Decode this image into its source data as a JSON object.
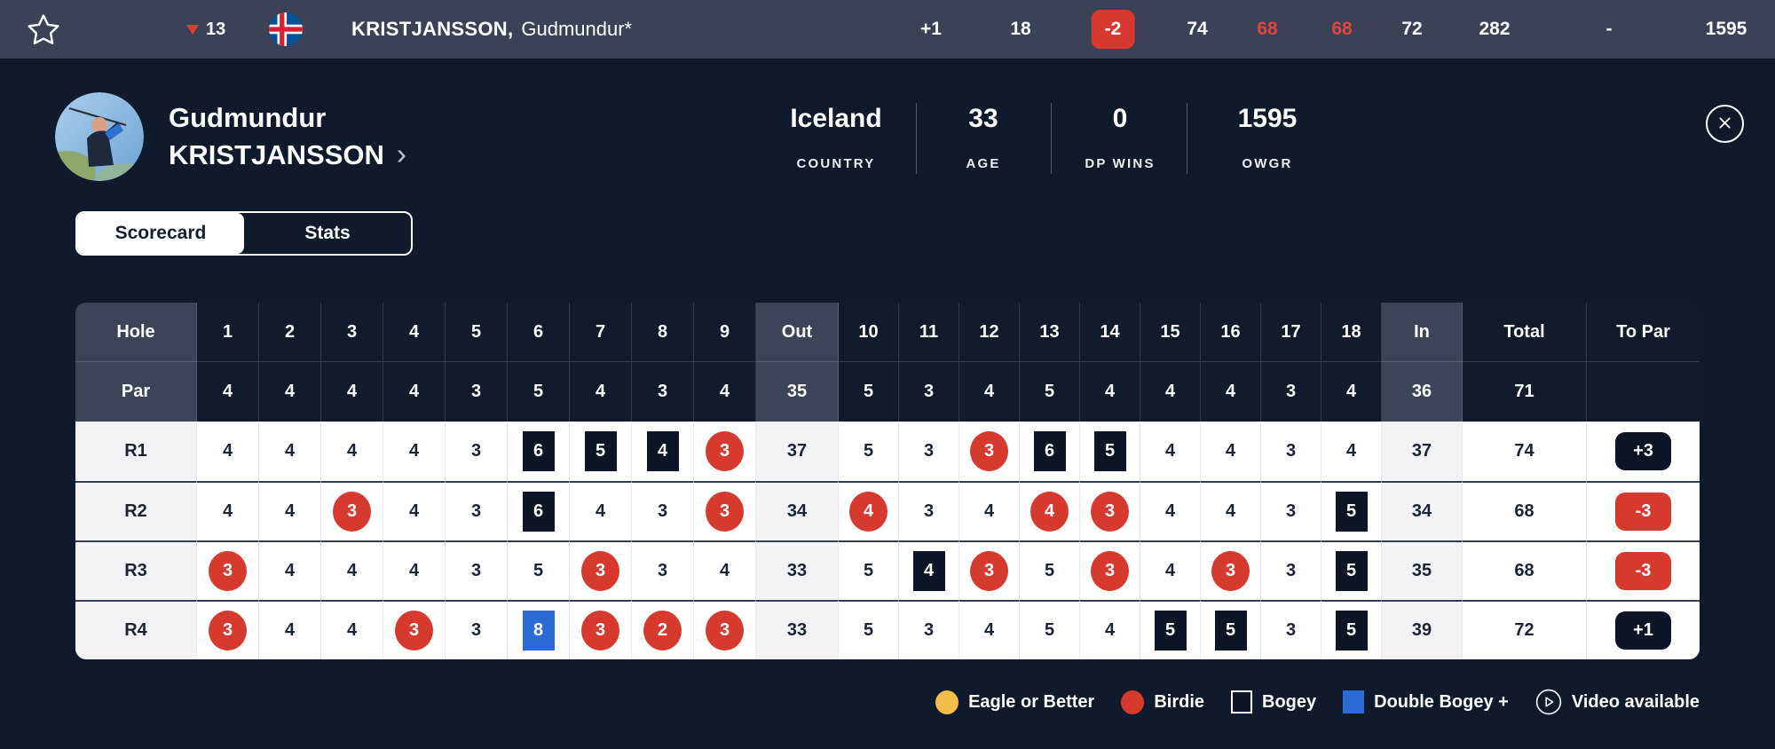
{
  "colors": {
    "top_bar_bg": "#3B4156",
    "page_bg": "#0F1A2C",
    "header_cell_bg": "#121B2E",
    "header_label_bg": "#3D4459",
    "row_label_bg": "#F3F3F5",
    "birdie_red": "#D6392E",
    "bogey_navy": "#0D1526",
    "double_bogey_blue": "#2A6BD6",
    "eagle_yellow": "#F2BD4A"
  },
  "icons": {
    "favorite": "star-icon",
    "position_down": "triangle-down-icon",
    "flag": "iceland-flag-icon",
    "profile_chevron": "›",
    "close": "close-x-icon",
    "video": "video-play-icon"
  },
  "top_bar": {
    "position_move": {
      "direction": "down",
      "value": "13"
    },
    "name_last": "KRISTJANSSON,",
    "name_first": "Gudmundur*",
    "cells": [
      {
        "text": "+1",
        "style": "plain"
      },
      {
        "text": "18",
        "style": "plain"
      },
      {
        "text": "-2",
        "style": "badge-red"
      },
      {
        "text": "74",
        "style": "plain"
      },
      {
        "text": "68",
        "style": "text-red"
      },
      {
        "text": "68",
        "style": "text-red"
      },
      {
        "text": "72",
        "style": "plain"
      },
      {
        "text": "282",
        "style": "plain"
      },
      {
        "text": "-",
        "style": "plain"
      },
      {
        "text": "1595",
        "style": "plain"
      }
    ]
  },
  "profile": {
    "first_name": "Gudmundur",
    "last_name": "KRISTJANSSON",
    "stats": [
      {
        "value": "Iceland",
        "label": "COUNTRY"
      },
      {
        "value": "33",
        "label": "AGE"
      },
      {
        "value": "0",
        "label": "DP WINS"
      },
      {
        "value": "1595",
        "label": "OWGR"
      }
    ]
  },
  "tabs": {
    "scorecard": "Scorecard",
    "stats": "Stats",
    "active": "Scorecard"
  },
  "scorecard": {
    "columns": {
      "hole": "Hole",
      "par": "Par",
      "out": "Out",
      "in": "In",
      "total": "Total",
      "to_par": "To Par"
    },
    "hole_numbers_front": [
      "1",
      "2",
      "3",
      "4",
      "5",
      "6",
      "7",
      "8",
      "9"
    ],
    "hole_numbers_back": [
      "10",
      "11",
      "12",
      "13",
      "14",
      "15",
      "16",
      "17",
      "18"
    ],
    "par_row": {
      "label": "Par",
      "front": [
        "4",
        "4",
        "4",
        "4",
        "3",
        "5",
        "4",
        "3",
        "4"
      ],
      "out": "35",
      "back": [
        "5",
        "3",
        "4",
        "5",
        "4",
        "4",
        "4",
        "3",
        "4"
      ],
      "in": "36",
      "total": "71",
      "to_par": ""
    },
    "rounds": [
      {
        "label": "R1",
        "front": [
          [
            "4"
          ],
          [
            "4"
          ],
          [
            "4"
          ],
          [
            "4"
          ],
          [
            "3"
          ],
          [
            "6",
            "bogey"
          ],
          [
            "5",
            "bogey"
          ],
          [
            "4",
            "bogey"
          ],
          [
            "3",
            "birdie"
          ]
        ],
        "out": "37",
        "back": [
          [
            "5"
          ],
          [
            "3"
          ],
          [
            "3",
            "birdie"
          ],
          [
            "6",
            "bogey"
          ],
          [
            "5",
            "bogey"
          ],
          [
            "4"
          ],
          [
            "4"
          ],
          [
            "3"
          ],
          [
            "4"
          ]
        ],
        "in": "37",
        "total": "74",
        "to_par": {
          "text": "+3",
          "style": "dark"
        }
      },
      {
        "label": "R2",
        "front": [
          [
            "4"
          ],
          [
            "4"
          ],
          [
            "3",
            "birdie"
          ],
          [
            "4"
          ],
          [
            "3"
          ],
          [
            "6",
            "bogey"
          ],
          [
            "4"
          ],
          [
            "3"
          ],
          [
            "3",
            "birdie"
          ]
        ],
        "out": "34",
        "back": [
          [
            "4",
            "birdie"
          ],
          [
            "3"
          ],
          [
            "4"
          ],
          [
            "4",
            "birdie"
          ],
          [
            "3",
            "birdie"
          ],
          [
            "4"
          ],
          [
            "4"
          ],
          [
            "3"
          ],
          [
            "5",
            "bogey"
          ]
        ],
        "in": "34",
        "total": "68",
        "to_par": {
          "text": "-3",
          "style": "red"
        }
      },
      {
        "label": "R3",
        "front": [
          [
            "3",
            "birdie"
          ],
          [
            "4"
          ],
          [
            "4"
          ],
          [
            "4"
          ],
          [
            "3"
          ],
          [
            "5"
          ],
          [
            "3",
            "birdie"
          ],
          [
            "3"
          ],
          [
            "4"
          ]
        ],
        "out": "33",
        "back": [
          [
            "5"
          ],
          [
            "4",
            "bogey"
          ],
          [
            "3",
            "birdie"
          ],
          [
            "5"
          ],
          [
            "3",
            "birdie"
          ],
          [
            "4"
          ],
          [
            "3",
            "birdie"
          ],
          [
            "3"
          ],
          [
            "5",
            "bogey"
          ]
        ],
        "in": "35",
        "total": "68",
        "to_par": {
          "text": "-3",
          "style": "red"
        }
      },
      {
        "label": "R4",
        "front": [
          [
            "3",
            "birdie"
          ],
          [
            "4"
          ],
          [
            "4"
          ],
          [
            "3",
            "birdie"
          ],
          [
            "3"
          ],
          [
            "8",
            "double"
          ],
          [
            "3",
            "birdie"
          ],
          [
            "2",
            "birdie"
          ],
          [
            "3",
            "birdie"
          ]
        ],
        "out": "33",
        "back": [
          [
            "5"
          ],
          [
            "3"
          ],
          [
            "4"
          ],
          [
            "5"
          ],
          [
            "4"
          ],
          [
            "5",
            "bogey"
          ],
          [
            "5",
            "bogey"
          ],
          [
            "3"
          ],
          [
            "5",
            "bogey"
          ]
        ],
        "in": "39",
        "total": "72",
        "to_par": {
          "text": "+1",
          "style": "dark"
        }
      }
    ]
  },
  "legend": [
    {
      "label": "Eagle or Better",
      "icon": "eagle-circle-icon",
      "shape": "circle",
      "color": "#F2BD4A"
    },
    {
      "label": "Birdie",
      "icon": "birdie-circle-icon",
      "shape": "circle",
      "color": "#D6392E"
    },
    {
      "label": "Bogey",
      "icon": "bogey-square-icon",
      "shape": "square-outline",
      "color": "#0D1526"
    },
    {
      "label": "Double Bogey +",
      "icon": "double-bogey-square-icon",
      "shape": "square",
      "color": "#2A6BD6"
    },
    {
      "label": "Video available",
      "icon": "video-play-icon",
      "shape": "play"
    }
  ]
}
